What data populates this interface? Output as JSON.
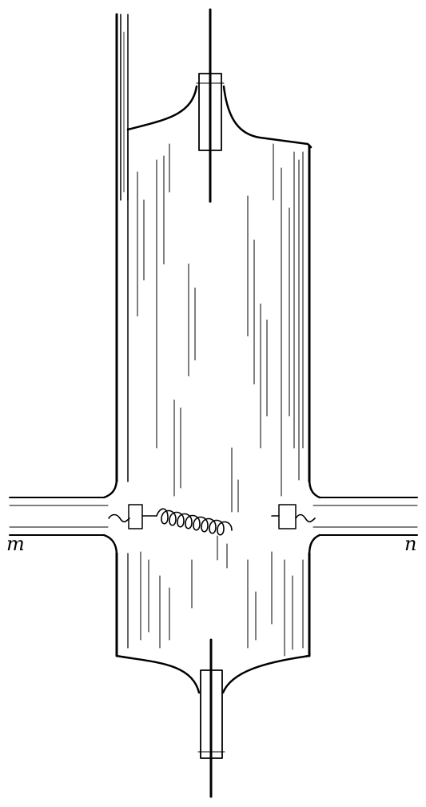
{
  "figure": {
    "labels": {
      "left_tube": "m",
      "right_tube": "n"
    },
    "colors": {
      "ink": "#000000",
      "paper": "#ffffff"
    }
  }
}
